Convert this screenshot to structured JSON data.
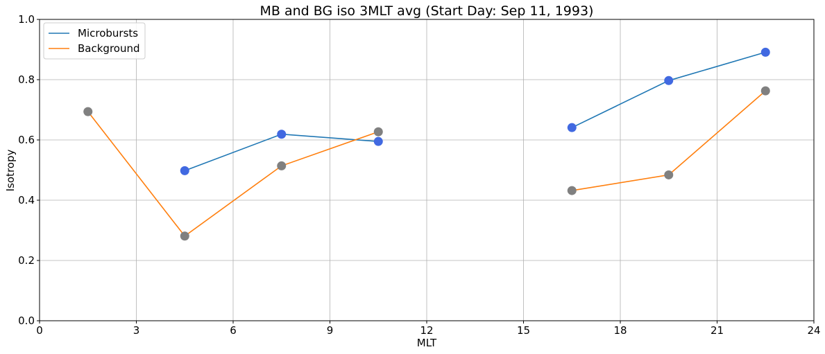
{
  "chart_data": {
    "type": "line",
    "title": "MB and BG iso 3MLT avg (Start Day: Sep 11, 1993)",
    "xlabel": "MLT",
    "ylabel": "Isotropy",
    "xlim": [
      0,
      24
    ],
    "ylim": [
      0.0,
      1.0
    ],
    "xticks": [
      0,
      3,
      6,
      9,
      12,
      15,
      18,
      21,
      24
    ],
    "xtick_labels": [
      "0",
      "3",
      "6",
      "9",
      "12",
      "15",
      "18",
      "21",
      "24"
    ],
    "yticks": [
      0.0,
      0.2,
      0.4,
      0.6,
      0.8,
      1.0
    ],
    "ytick_labels": [
      "0.0",
      "0.2",
      "0.4",
      "0.6",
      "0.8",
      "1.0"
    ],
    "grid": true,
    "legend_position": "top-left",
    "series": [
      {
        "name": "Microbursts",
        "line_color": "#1f77b4",
        "marker_color": "#4169e1",
        "segments": [
          [
            {
              "x": 4.5,
              "y": 0.498
            },
            {
              "x": 7.5,
              "y": 0.619
            },
            {
              "x": 10.5,
              "y": 0.595
            }
          ],
          [
            {
              "x": 16.5,
              "y": 0.641
            },
            {
              "x": 19.5,
              "y": 0.797
            },
            {
              "x": 22.5,
              "y": 0.891
            }
          ]
        ]
      },
      {
        "name": "Background",
        "line_color": "#ff7f0e",
        "marker_color": "#808080",
        "segments": [
          [
            {
              "x": 1.5,
              "y": 0.694
            },
            {
              "x": 4.5,
              "y": 0.281
            },
            {
              "x": 7.5,
              "y": 0.514
            },
            {
              "x": 10.5,
              "y": 0.627
            }
          ],
          [
            {
              "x": 16.5,
              "y": 0.432
            },
            {
              "x": 19.5,
              "y": 0.484
            },
            {
              "x": 22.5,
              "y": 0.763
            }
          ]
        ]
      }
    ]
  }
}
